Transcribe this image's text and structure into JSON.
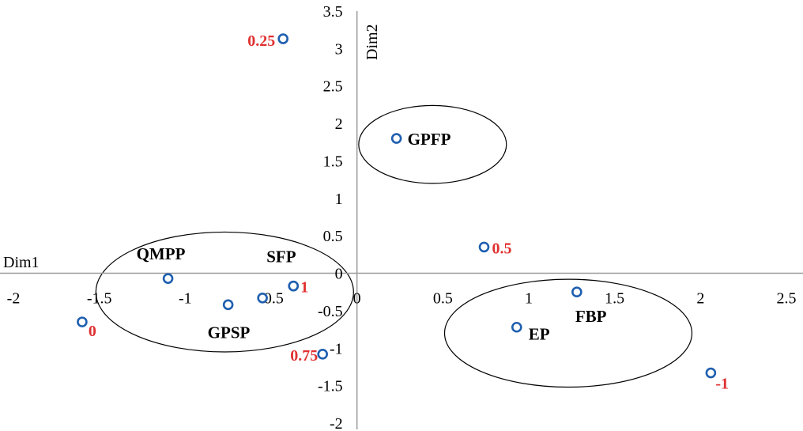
{
  "chart_data": {
    "type": "scatter",
    "xlabel": "Dim1",
    "ylabel": "Dim2",
    "xlim": [
      -2,
      2.5
    ],
    "ylim": [
      -2,
      3.5
    ],
    "x_ticks": [
      "-2",
      "-1.5",
      "-1",
      "-0.5",
      "0",
      "0.5",
      "1",
      "1.5",
      "2",
      "2.5"
    ],
    "y_ticks": [
      "-2",
      "-1.5",
      "-1",
      "-0.5",
      "0",
      "0.5",
      "1",
      "1.5",
      "2",
      "2.5",
      "3",
      "3.5"
    ],
    "grid": false,
    "marker_color": "#1f5fb0",
    "value_label_color": "#e03030",
    "points": [
      {
        "x": 0.23,
        "y": 1.8,
        "label": "GPFP",
        "label_kind": "category"
      },
      {
        "x": -1.1,
        "y": -0.07,
        "label": "QMPP",
        "label_kind": "category"
      },
      {
        "x": -0.37,
        "y": -0.17,
        "label": "SFP",
        "label_kind": "category"
      },
      {
        "x": -0.75,
        "y": -0.42,
        "label": "GPSP",
        "label_kind": "category"
      },
      {
        "x": 1.28,
        "y": -0.25,
        "label": "FBP",
        "label_kind": "category"
      },
      {
        "x": 0.93,
        "y": -0.72,
        "label": "EP",
        "label_kind": "category"
      },
      {
        "x": -0.55,
        "y": -0.33,
        "label": "",
        "label_kind": "category"
      },
      {
        "x": -0.43,
        "y": 3.13,
        "label": "0.25",
        "label_kind": "value"
      },
      {
        "x": 0.74,
        "y": 0.35,
        "label": "0.5",
        "label_kind": "value"
      },
      {
        "x": -0.2,
        "y": -1.08,
        "label": "0.75",
        "label_kind": "value"
      },
      {
        "x": -0.37,
        "y": -0.17,
        "label": "1",
        "label_kind": "value"
      },
      {
        "x": -1.6,
        "y": -0.65,
        "label": "0",
        "label_kind": "value"
      },
      {
        "x": 2.06,
        "y": -1.33,
        "label": "-1",
        "label_kind": "value"
      }
    ],
    "ellipses": [
      {
        "name": "GPFP-cluster",
        "cx": 0.44,
        "cy": 1.72,
        "rx": 0.43,
        "ry": 0.52
      },
      {
        "name": "GPSP-cluster",
        "cx": -0.77,
        "cy": -0.25,
        "rx": 0.75,
        "ry": 0.8
      },
      {
        "name": "EP-FBP-cluster",
        "cx": 1.23,
        "cy": -0.8,
        "rx": 0.72,
        "ry": 0.72
      }
    ]
  }
}
